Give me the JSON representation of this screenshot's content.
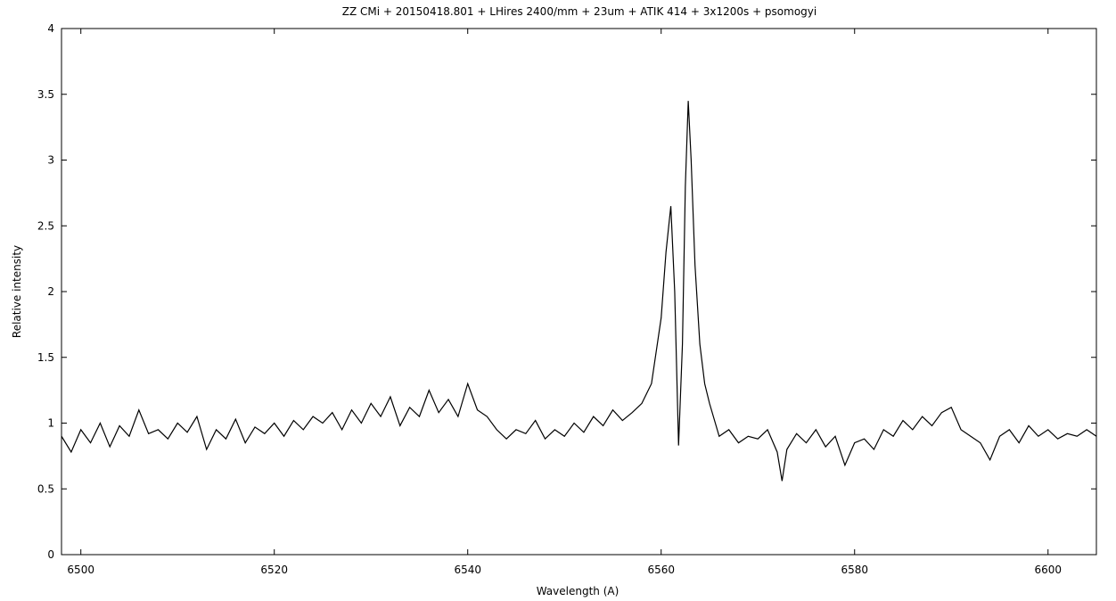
{
  "chart_data": {
    "type": "line",
    "title": "ZZ CMi + 20150418.801 + LHires 2400/mm + 23um + ATIK 414 + 3x1200s + psomogyi",
    "x_label": "Wavelength (A)",
    "y_label": "Relative intensity",
    "color": "#000000",
    "xlim": [
      6498,
      6605
    ],
    "ylim": [
      0,
      4
    ],
    "xticks": [
      6500,
      6520,
      6540,
      6560,
      6580,
      6600
    ],
    "yticks": [
      0,
      0.5,
      1,
      1.5,
      2,
      2.5,
      3,
      3.5,
      4
    ],
    "grid": false,
    "x": [
      6498,
      6499,
      6500,
      6501,
      6502,
      6503,
      6504,
      6505,
      6506,
      6507,
      6508,
      6509,
      6510,
      6511,
      6512,
      6513,
      6514,
      6515,
      6516,
      6517,
      6518,
      6519,
      6520,
      6521,
      6522,
      6523,
      6524,
      6525,
      6526,
      6527,
      6528,
      6529,
      6530,
      6531,
      6532,
      6533,
      6534,
      6535,
      6536,
      6537,
      6538,
      6539,
      6540,
      6541,
      6542,
      6543,
      6544,
      6545,
      6546,
      6547,
      6548,
      6549,
      6550,
      6551,
      6552,
      6553,
      6554,
      6555,
      6556,
      6557,
      6558,
      6559,
      6560,
      6560.5,
      6561,
      6561.4,
      6561.8,
      6562.2,
      6562.5,
      6562.8,
      6563.1,
      6563.5,
      6564,
      6564.5,
      6565,
      6566,
      6567,
      6568,
      6569,
      6570,
      6571,
      6572,
      6572.5,
      6573,
      6574,
      6575,
      6576,
      6577,
      6578,
      6579,
      6580,
      6581,
      6582,
      6583,
      6584,
      6585,
      6586,
      6587,
      6588,
      6589,
      6590,
      6591,
      6592,
      6593,
      6594,
      6595,
      6596,
      6597,
      6598,
      6599,
      6600,
      6601,
      6602,
      6603,
      6604,
      6605
    ],
    "values": [
      0.9,
      0.78,
      0.95,
      0.85,
      1.0,
      0.82,
      0.98,
      0.9,
      1.1,
      0.92,
      0.95,
      0.88,
      1.0,
      0.93,
      1.05,
      0.8,
      0.95,
      0.88,
      1.03,
      0.85,
      0.97,
      0.92,
      1.0,
      0.9,
      1.02,
      0.95,
      1.05,
      1.0,
      1.08,
      0.95,
      1.1,
      1.0,
      1.15,
      1.05,
      1.2,
      0.98,
      1.12,
      1.05,
      1.25,
      1.08,
      1.18,
      1.05,
      1.3,
      1.1,
      1.05,
      0.95,
      0.88,
      0.95,
      0.92,
      1.02,
      0.88,
      0.95,
      0.9,
      1.0,
      0.93,
      1.05,
      0.98,
      1.1,
      1.02,
      1.08,
      1.15,
      1.3,
      1.8,
      2.3,
      2.65,
      2.0,
      0.83,
      1.6,
      2.8,
      3.45,
      3.0,
      2.2,
      1.6,
      1.3,
      1.15,
      0.9,
      0.95,
      0.85,
      0.9,
      0.88,
      0.95,
      0.78,
      0.56,
      0.8,
      0.92,
      0.85,
      0.95,
      0.82,
      0.9,
      0.68,
      0.85,
      0.88,
      0.8,
      0.95,
      0.9,
      1.02,
      0.95,
      1.05,
      0.98,
      1.08,
      1.12,
      0.95,
      0.9,
      0.85,
      0.72,
      0.9,
      0.95,
      0.85,
      0.98,
      0.9,
      0.95,
      0.88,
      0.92,
      0.9,
      0.95,
      0.9
    ]
  }
}
